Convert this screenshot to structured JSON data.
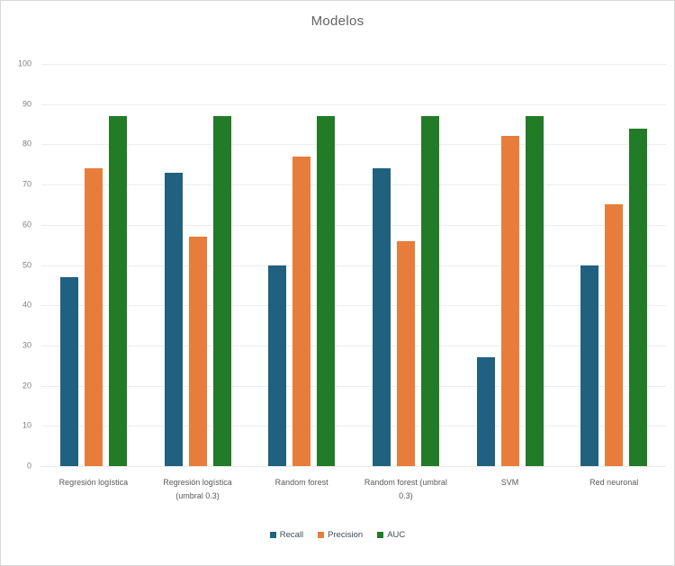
{
  "chart_data": {
    "type": "bar",
    "title": "Modelos",
    "categories": [
      "Regresión logística",
      "Regresión logística (umbral 0.3)",
      "Random forest",
      "Random forest (umbral 0.3)",
      "SVM",
      "Red neuronal"
    ],
    "series": [
      {
        "name": "Recall",
        "color": "#20617F",
        "values": [
          47,
          73,
          50,
          74,
          27,
          50
        ]
      },
      {
        "name": "Precision",
        "color": "#E87D3B",
        "values": [
          74,
          57,
          77,
          56,
          82,
          65
        ]
      },
      {
        "name": "AUC",
        "color": "#227B26",
        "values": [
          87,
          87,
          87,
          87,
          87,
          84
        ]
      }
    ],
    "ylim": [
      0,
      100
    ],
    "yticks": [
      0,
      10,
      20,
      30,
      40,
      50,
      60,
      70,
      80,
      90,
      100
    ],
    "grid": true,
    "legend_position": "bottom"
  },
  "colors": {
    "background": "#FFFFFF",
    "border": "#D9D9D9",
    "grid": "#ECECEC",
    "title_text": "#636363",
    "axis_text": "#7F7F7F",
    "category_text": "#595959",
    "legend_text": "#3E4C59"
  }
}
